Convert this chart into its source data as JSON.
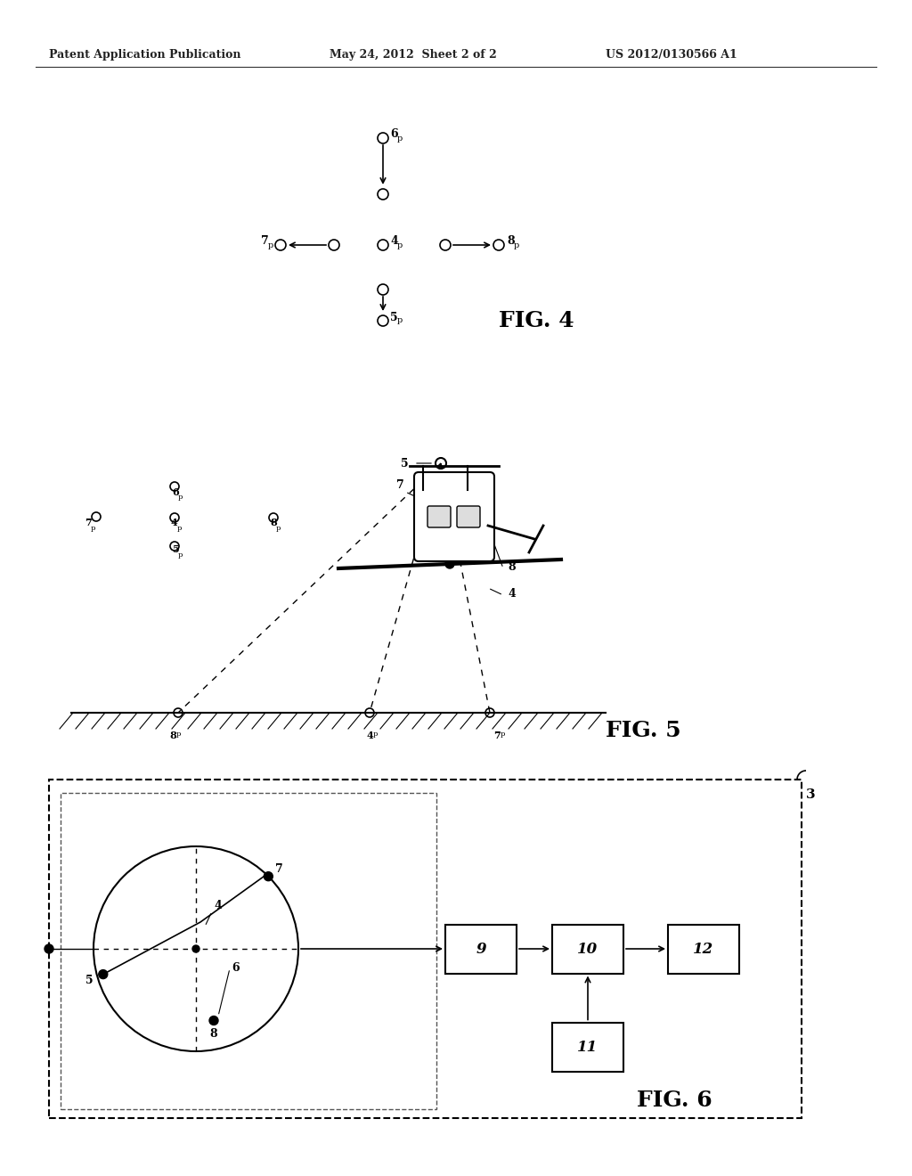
{
  "header_left": "Patent Application Publication",
  "header_center": "May 24, 2012  Sheet 2 of 2",
  "header_right": "US 2012/0130566 A1",
  "bg_color": "#ffffff",
  "fig4_label": "FIG. 4",
  "fig5_label": "FIG. 5",
  "fig6_label": "FIG. 6"
}
